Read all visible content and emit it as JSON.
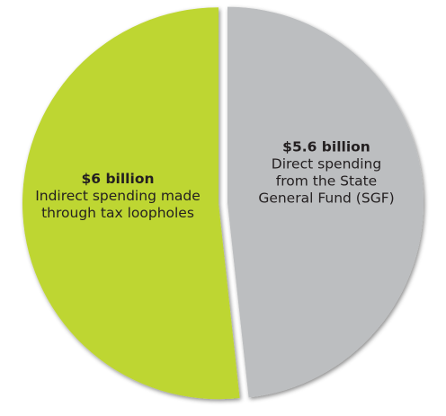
{
  "chart_data": {
    "type": "pie",
    "slices": [
      {
        "value": 5.6,
        "value_label": "$5.6 billion",
        "description": [
          "Direct spending",
          "from the State",
          "General Fund (SGF)"
        ],
        "color": "#bcbec0"
      },
      {
        "value": 6,
        "value_label": "$6 billion",
        "description": [
          "Indirect spending made",
          "through tax loopholes"
        ],
        "color": "#bed630"
      }
    ],
    "start_direction": "top",
    "order": "clockwise",
    "legend": "none"
  }
}
